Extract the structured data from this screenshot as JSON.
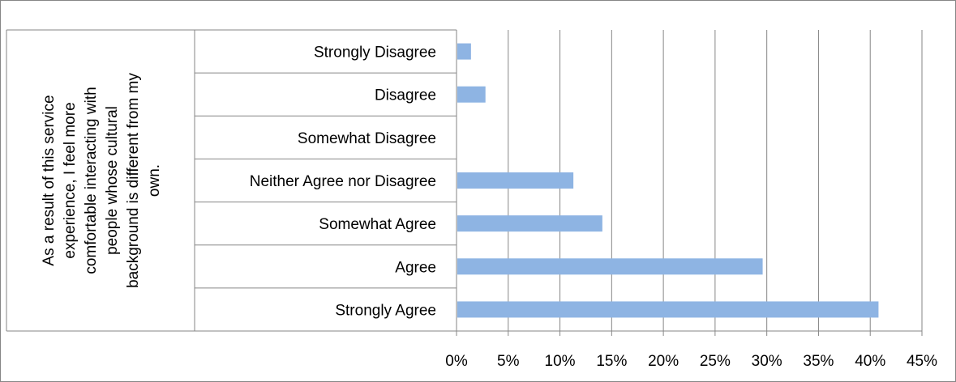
{
  "chart_data": {
    "type": "bar",
    "orientation": "horizontal",
    "group_label": "As a result of this service experience, I feel more comfortable interacting with people whose cultural background is different from my own.",
    "group_label_lines": [
      "As a result of this service",
      "experience, I feel more",
      "comfortable interacting with",
      "people whose cultural",
      "background is different from my",
      "own."
    ],
    "categories": [
      "Strongly Disagree",
      "Disagree",
      "Somewhat Disagree",
      "Neither Agree nor Disagree",
      "Somewhat Agree",
      "Agree",
      "Strongly Agree"
    ],
    "values": [
      1.4,
      2.8,
      0,
      11.3,
      14.1,
      29.6,
      40.8
    ],
    "x_ticks": [
      "0%",
      "5%",
      "10%",
      "15%",
      "20%",
      "25%",
      "30%",
      "35%",
      "40%",
      "45%"
    ],
    "xlim": [
      0,
      45
    ],
    "grid": "vertical",
    "legend": "none",
    "bar_color": "#8eb4e3",
    "grid_color": "#868686"
  }
}
